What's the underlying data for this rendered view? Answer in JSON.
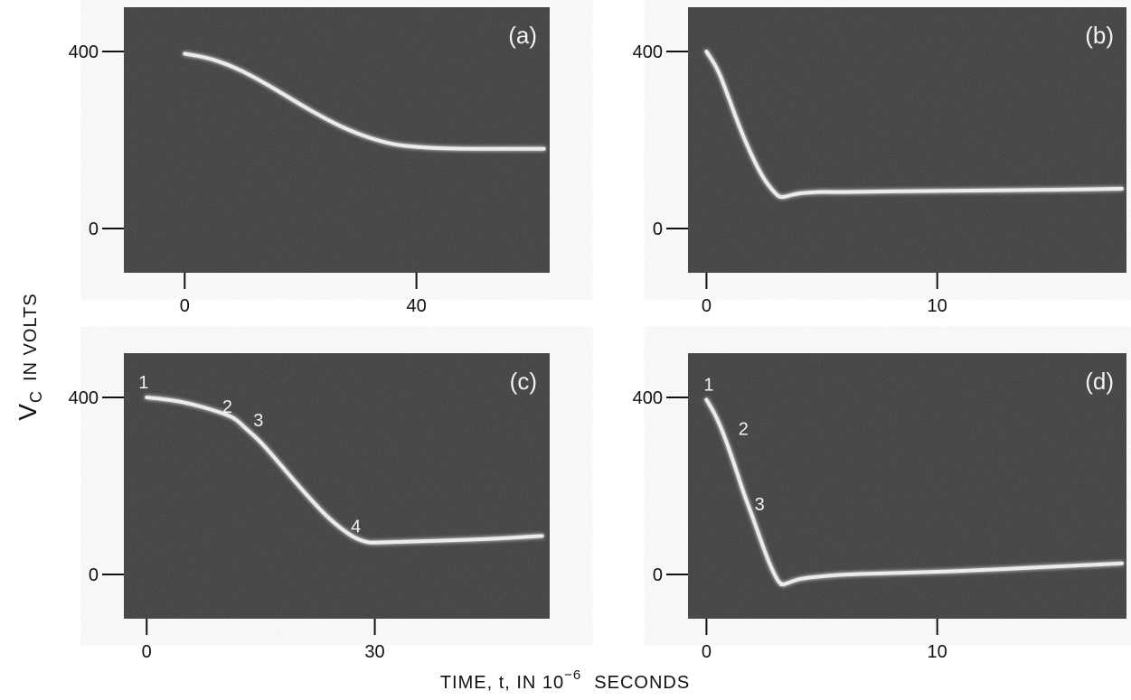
{
  "figure": {
    "ylabel_main": "V",
    "ylabel_sub": "C",
    "ylabel_rest": "IN VOLTS",
    "xlabel_pre": "TIME, t, IN 10",
    "xlabel_exp": "−6",
    "xlabel_post": "SECONDS"
  },
  "colors": {
    "screen": "#3b3b3b",
    "trace": "#f4f4f4",
    "ink": "#111111"
  },
  "chart_data": [
    {
      "type": "line",
      "panel": "(a)",
      "xlim": [
        -10.5,
        63
      ],
      "ylim": [
        -100,
        500
      ],
      "xticks": [
        0,
        40
      ],
      "yticks": [
        0,
        400
      ],
      "xtick_labels": [
        "0",
        "40"
      ],
      "ytick_labels": [
        "0",
        "400"
      ],
      "x": [
        0,
        4,
        8,
        12,
        16,
        20,
        24,
        28,
        32,
        36,
        40,
        45,
        50,
        55,
        62
      ],
      "y": [
        395,
        386,
        368,
        342,
        312,
        280,
        250,
        224,
        204,
        190,
        184,
        181,
        180,
        180,
        180
      ],
      "point_labels": []
    },
    {
      "type": "line",
      "panel": "(b)",
      "xlim": [
        -0.8,
        18.2
      ],
      "ylim": [
        -100,
        500
      ],
      "xticks": [
        0,
        10
      ],
      "yticks": [
        0,
        400
      ],
      "xtick_labels": [
        "0",
        "10"
      ],
      "ytick_labels": [
        "0",
        "400"
      ],
      "x": [
        0,
        0.5,
        1,
        1.5,
        2,
        2.5,
        3,
        3.2,
        3.5,
        4,
        5,
        6,
        8,
        10,
        12,
        14,
        16,
        18
      ],
      "y": [
        400,
        360,
        290,
        220,
        160,
        110,
        78,
        70,
        73,
        80,
        83,
        82,
        84,
        85,
        86,
        87,
        88,
        90
      ],
      "point_labels": []
    },
    {
      "type": "line",
      "panel": "(c)",
      "xlim": [
        -3,
        53
      ],
      "ylim": [
        -100,
        500
      ],
      "xticks": [
        0,
        30
      ],
      "yticks": [
        0,
        400
      ],
      "xtick_labels": [
        "0",
        "30"
      ],
      "ytick_labels": [
        "0",
        "400"
      ],
      "x": [
        0,
        3,
        6,
        9,
        11.5,
        13,
        15,
        18,
        21,
        24,
        27,
        29,
        30,
        32,
        36,
        40,
        45,
        50,
        52
      ],
      "y": [
        400,
        395,
        385,
        370,
        355,
        330,
        300,
        240,
        180,
        125,
        85,
        72,
        72,
        73,
        75,
        77,
        80,
        85,
        87
      ],
      "point_labels": [
        {
          "text": "1",
          "x": -0.4,
          "y": 420
        },
        {
          "text": "2",
          "x": 10.6,
          "y": 365
        },
        {
          "text": "3",
          "x": 14.7,
          "y": 335
        },
        {
          "text": "4",
          "x": 27.5,
          "y": 95
        }
      ]
    },
    {
      "type": "line",
      "panel": "(d)",
      "xlim": [
        -0.8,
        18.2
      ],
      "ylim": [
        -100,
        500
      ],
      "xticks": [
        0,
        10
      ],
      "yticks": [
        0,
        400
      ],
      "xtick_labels": [
        "0",
        "10"
      ],
      "ytick_labels": [
        "0",
        "400"
      ],
      "x": [
        0,
        0.4,
        0.8,
        1.2,
        1.6,
        2,
        2.4,
        2.8,
        3.2,
        3.5,
        4,
        5,
        6,
        8,
        10,
        12,
        14,
        16,
        18
      ],
      "y": [
        395,
        360,
        310,
        250,
        185,
        130,
        70,
        15,
        -25,
        -20,
        -10,
        -4,
        0,
        3,
        6,
        10,
        15,
        20,
        25
      ],
      "point_labels": [
        {
          "text": "1",
          "x": 0.1,
          "y": 415
        },
        {
          "text": "2",
          "x": 1.6,
          "y": 315
        },
        {
          "text": "3",
          "x": 2.3,
          "y": 145
        }
      ]
    }
  ]
}
